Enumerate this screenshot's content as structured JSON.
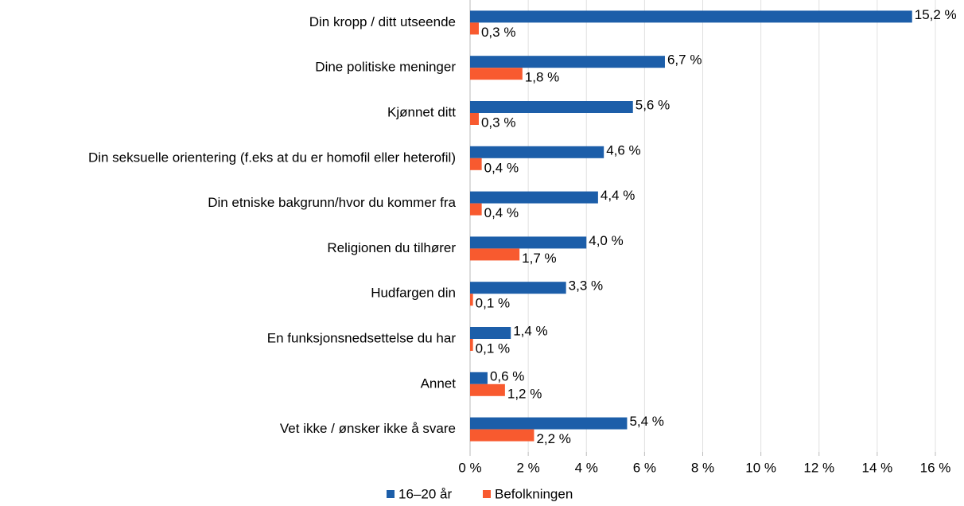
{
  "chart_data": {
    "type": "bar",
    "orientation": "horizontal",
    "categories": [
      "Din kropp / ditt utseende",
      "Dine politiske meninger",
      "Kjønnet ditt",
      "Din seksuelle orientering (f.eks at du er homofil eller heterofil)",
      "Din etniske bakgrunn/hvor du kommer fra",
      "Religionen du tilhører",
      "Hudfargen din",
      "En funksjonsnedsettelse du har",
      "Annet",
      "Vet ikke / ønsker ikke å svare"
    ],
    "series": [
      {
        "name": "16–20 år",
        "color": "#1c5ea9",
        "values": [
          15.2,
          6.7,
          5.6,
          4.6,
          4.4,
          4.0,
          3.3,
          1.4,
          0.6,
          5.4
        ],
        "value_labels": [
          "15,2 %",
          "6,7 %",
          "5,6 %",
          "4,6 %",
          "4,4 %",
          "4,0 %",
          "3,3 %",
          "1,4 %",
          "0,6 %",
          "5,4 %"
        ]
      },
      {
        "name": "Befolkningen",
        "color": "#f85a2f",
        "values": [
          0.3,
          1.8,
          0.3,
          0.4,
          0.4,
          1.7,
          0.1,
          0.1,
          1.2,
          2.2
        ],
        "value_labels": [
          "0,3 %",
          "1,8 %",
          "0,3 %",
          "0,4 %",
          "0,4 %",
          "1,7 %",
          "0,1 %",
          "0,1 %",
          "1,2 %",
          "2,2 %"
        ]
      }
    ],
    "xlim": [
      0,
      16
    ],
    "xticks": [
      {
        "value": 0,
        "label": "0 %"
      },
      {
        "value": 2,
        "label": "2 %"
      },
      {
        "value": 4,
        "label": "4 %"
      },
      {
        "value": 6,
        "label": "6 %"
      },
      {
        "value": 8,
        "label": "8 %"
      },
      {
        "value": 10,
        "label": "10 %"
      },
      {
        "value": 12,
        "label": "12 %"
      },
      {
        "value": 14,
        "label": "14 %"
      },
      {
        "value": 16,
        "label": "16 %"
      }
    ],
    "grid": true,
    "legend": "bottom"
  }
}
